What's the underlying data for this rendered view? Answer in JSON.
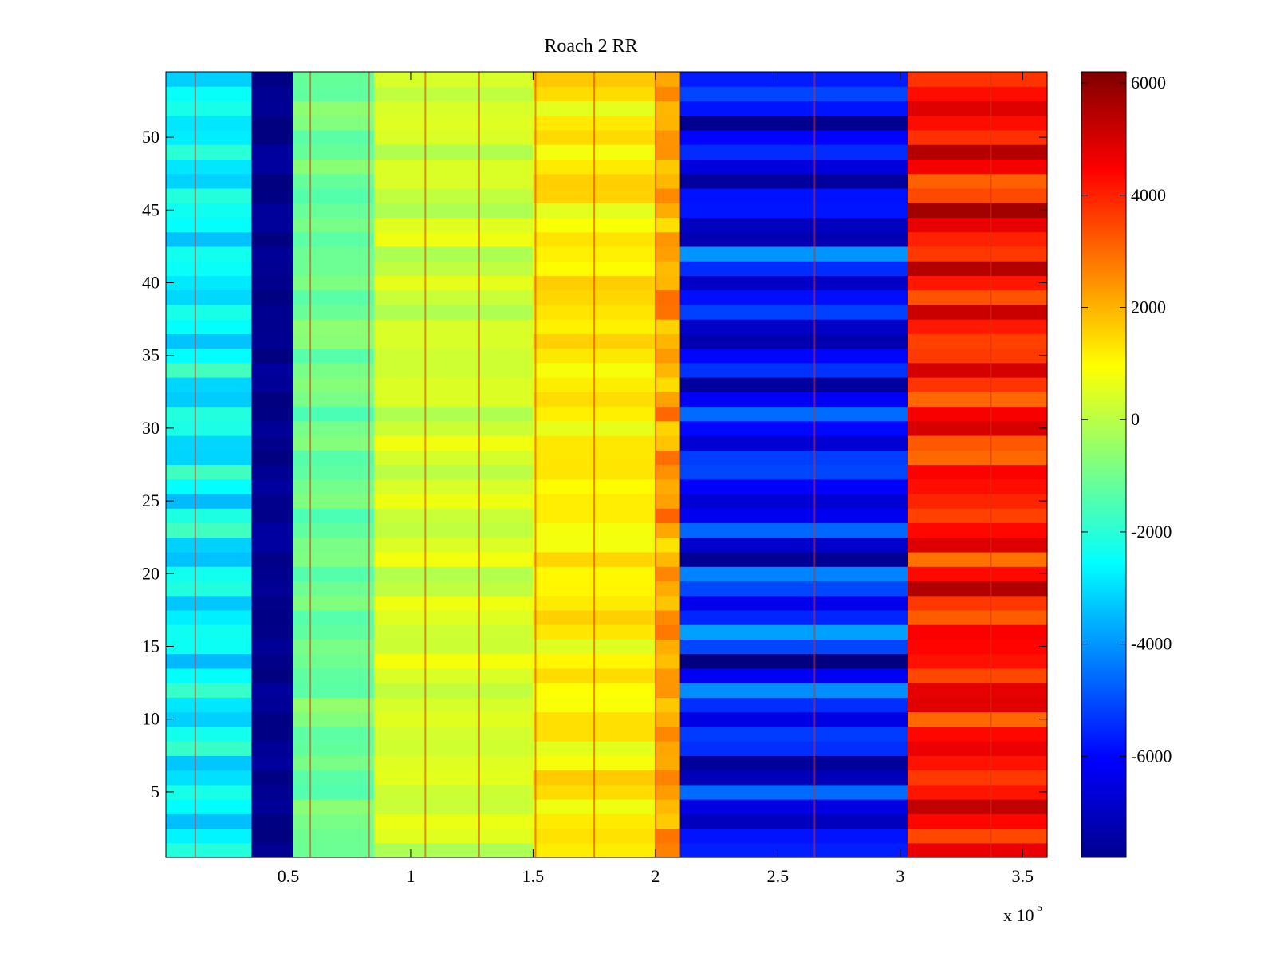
{
  "chart_data": {
    "type": "heatmap",
    "title": "Roach 2 RR",
    "xlabel": "",
    "ylabel": "",
    "colormap": "jet",
    "xlim": [
      0,
      360000
    ],
    "ylim": [
      0.5,
      54.5
    ],
    "x_ticks": [
      50000,
      100000,
      150000,
      200000,
      250000,
      300000,
      350000
    ],
    "x_tick_labels": [
      "0.5",
      "1",
      "1.5",
      "2",
      "2.5",
      "3",
      "3.5"
    ],
    "x_exponent_label": {
      "base": "x 10",
      "exponent": "5"
    },
    "y_ticks": [
      5,
      10,
      15,
      20,
      25,
      30,
      35,
      40,
      45,
      50
    ],
    "y_tick_labels": [
      "5",
      "10",
      "15",
      "20",
      "25",
      "30",
      "35",
      "40",
      "45",
      "50"
    ],
    "colorbar": {
      "clim": [
        -7800,
        6200
      ],
      "ticks": [
        -6000,
        -4000,
        -2000,
        0,
        2000,
        4000,
        6000
      ],
      "tick_labels": [
        "-6000",
        "-4000",
        "-2000",
        "0",
        "2000",
        "4000",
        "6000"
      ]
    },
    "rows": 54,
    "columns": [
      {
        "x0": 0,
        "x1": 35000,
        "value": -2600,
        "row_variation": 900
      },
      {
        "x0": 35000,
        "x1": 52000,
        "value": -7600,
        "row_variation": 300
      },
      {
        "x0": 52000,
        "x1": 85000,
        "value": -1000,
        "row_variation": 500
      },
      {
        "x0": 85000,
        "x1": 150000,
        "value": 300,
        "row_variation": 500
      },
      {
        "x0": 150000,
        "x1": 200000,
        "value": 1200,
        "row_variation": 700
      },
      {
        "x0": 200000,
        "x1": 210000,
        "value": 2200,
        "row_variation": 900
      },
      {
        "x0": 210000,
        "x1": 303000,
        "value": -5800,
        "row_variation": 1800
      },
      {
        "x0": 303000,
        "x1": 360000,
        "value": 4200,
        "row_variation": 1500
      }
    ],
    "vertical_streaks_x": [
      12000,
      59000,
      83000,
      106000,
      128000,
      151000,
      175000,
      200000,
      265000,
      337000
    ]
  }
}
